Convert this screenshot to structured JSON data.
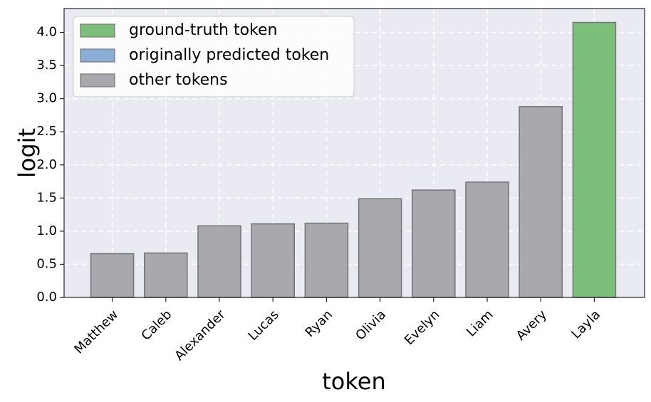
{
  "chart_data": {
    "type": "bar",
    "xlabel": "token",
    "ylabel": "logit",
    "categories": [
      "Matthew",
      "Caleb",
      "Alexander",
      "Lucas",
      "Ryan",
      "Olivia",
      "Evelyn",
      "Liam",
      "Avery",
      "Layla"
    ],
    "values": [
      0.66,
      0.67,
      1.08,
      1.11,
      1.12,
      1.49,
      1.62,
      1.74,
      2.88,
      4.15
    ],
    "bar_roles": [
      "other",
      "other",
      "other",
      "other",
      "other",
      "other",
      "other",
      "other",
      "other",
      "ground_truth"
    ],
    "ylim": [
      0,
      4.36
    ],
    "yticks": [
      "0.0",
      "0.5",
      "1.0",
      "1.5",
      "2.0",
      "2.5",
      "3.0",
      "3.5",
      "4.0"
    ],
    "grid": true,
    "legend_position": "top-left",
    "legend": [
      {
        "role": "ground_truth",
        "label": "ground-truth token",
        "color": "#7bbf7b"
      },
      {
        "role": "predicted",
        "label": "originally predicted token",
        "color": "#8aaed6"
      },
      {
        "role": "other",
        "label": "other tokens",
        "color": "#a9a8ae"
      }
    ],
    "colors": {
      "plot_background": "#eaeaf2",
      "grid": "#ffffff",
      "bar_edge": "#777777",
      "ground_truth": "#7bbf7b",
      "predicted": "#8aaed6",
      "other": "#a9a8ae"
    }
  }
}
